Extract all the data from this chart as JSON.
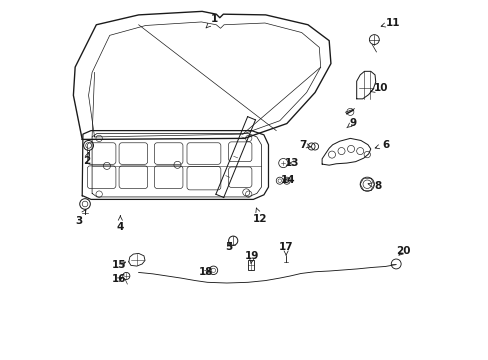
{
  "background_color": "#ffffff",
  "line_color": "#1a1a1a",
  "figsize": [
    4.89,
    3.6
  ],
  "dpi": 100,
  "label_fontsize": 7.5,
  "label_positions": {
    "1": [
      0.415,
      0.955,
      0.39,
      0.93
    ],
    "2": [
      0.052,
      0.555,
      0.058,
      0.58
    ],
    "3": [
      0.03,
      0.385,
      0.052,
      0.418
    ],
    "4": [
      0.148,
      0.368,
      0.148,
      0.4
    ],
    "5": [
      0.456,
      0.31,
      0.468,
      0.33
    ],
    "6": [
      0.9,
      0.6,
      0.868,
      0.59
    ],
    "7": [
      0.665,
      0.6,
      0.69,
      0.593
    ],
    "8": [
      0.878,
      0.482,
      0.848,
      0.49
    ],
    "9": [
      0.808,
      0.662,
      0.79,
      0.648
    ],
    "10": [
      0.888,
      0.76,
      0.855,
      0.75
    ],
    "11": [
      0.92,
      0.946,
      0.885,
      0.935
    ],
    "12": [
      0.545,
      0.39,
      0.53,
      0.43
    ],
    "13": [
      0.634,
      0.548,
      0.618,
      0.548
    ],
    "14": [
      0.625,
      0.5,
      0.614,
      0.503
    ],
    "15": [
      0.144,
      0.258,
      0.172,
      0.272
    ],
    "16": [
      0.144,
      0.218,
      0.162,
      0.228
    ],
    "17": [
      0.618,
      0.31,
      0.618,
      0.285
    ],
    "18": [
      0.39,
      0.238,
      0.41,
      0.244
    ],
    "19": [
      0.522,
      0.285,
      0.518,
      0.262
    ],
    "20": [
      0.95,
      0.298,
      0.93,
      0.28
    ]
  }
}
